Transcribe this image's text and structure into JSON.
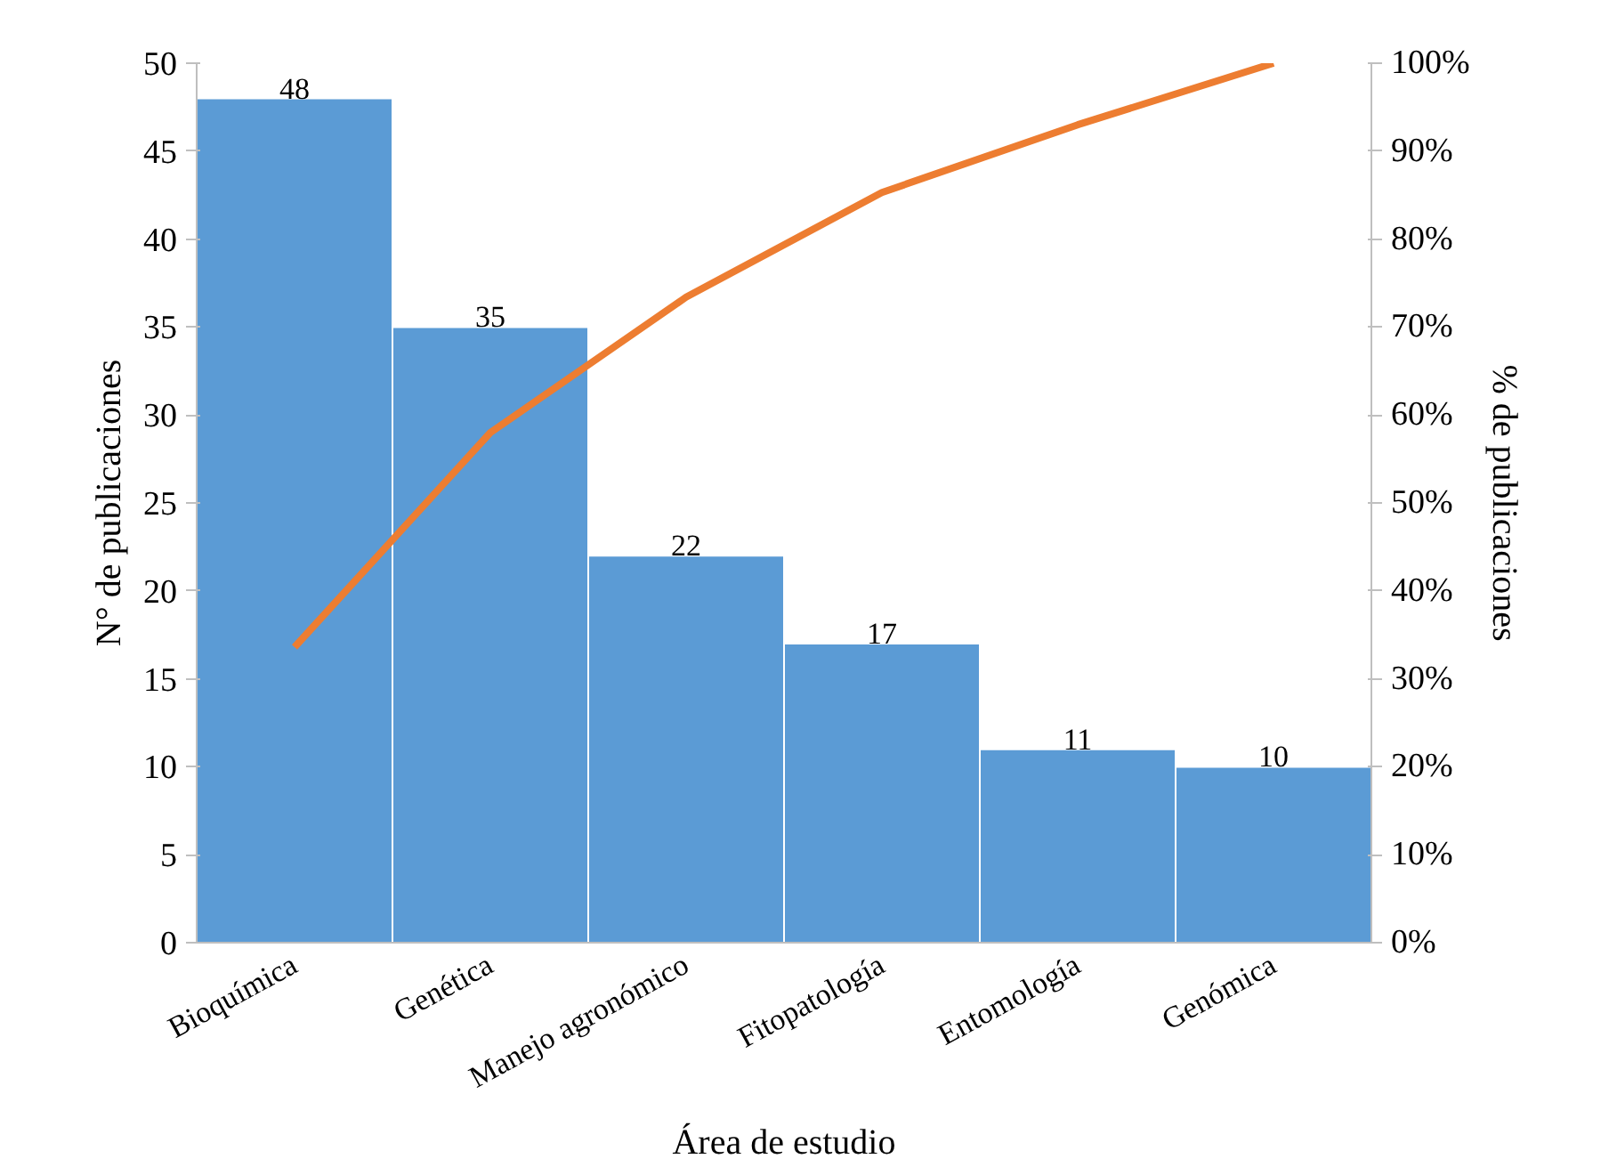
{
  "chart_data": {
    "type": "bar",
    "categories": [
      "Bioquímica",
      "Genética",
      "Manejo agronómico",
      "Fitopatología",
      "Entomología",
      "Genómica"
    ],
    "xlabel": "Área de estudio",
    "ylabel": "N° de publicaciones",
    "y2label": "% de publicaciones",
    "ylim": [
      0,
      50
    ],
    "yticks": [
      0,
      5,
      10,
      15,
      20,
      25,
      30,
      35,
      40,
      45,
      50
    ],
    "y2lim": [
      0,
      100
    ],
    "y2ticks": [
      {
        "value": 0,
        "label": "0%"
      },
      {
        "value": 10,
        "label": "10%"
      },
      {
        "value": 20,
        "label": "20%"
      },
      {
        "value": 30,
        "label": "30%"
      },
      {
        "value": 40,
        "label": "40%"
      },
      {
        "value": 50,
        "label": "50%"
      },
      {
        "value": 60,
        "label": "60%"
      },
      {
        "value": 70,
        "label": "70%"
      },
      {
        "value": 80,
        "label": "80%"
      },
      {
        "value": 90,
        "label": "90%"
      },
      {
        "value": 100,
        "label": "100%"
      }
    ],
    "series": [
      {
        "color": "#5b9bd5",
        "values": [
          48,
          35,
          22,
          17,
          11,
          10
        ],
        "data_labels": true
      },
      {
        "type": "line",
        "axis": "y2",
        "color": "#ed7d31",
        "values": [
          33.6,
          58.0,
          73.4,
          85.3,
          93.0,
          100
        ]
      }
    ],
    "grid": false,
    "marker": "none",
    "line_style": "solid"
  }
}
